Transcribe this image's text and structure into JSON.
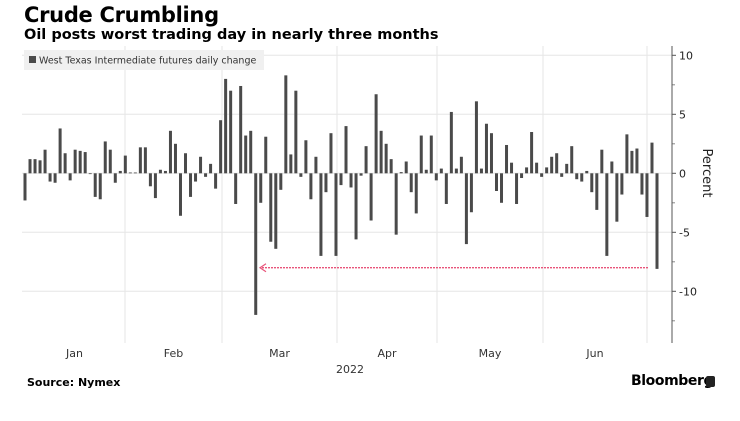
{
  "title": "Crude Crumbling",
  "subtitle": "Oil posts worst trading day in nearly three months",
  "source": "Source: Nymex",
  "brand": "Bloomberg",
  "chart_data": {
    "type": "bar",
    "legend": {
      "label": "West Texas Intermediate futures daily change",
      "placement": "top-left"
    },
    "ylabel": "Percent",
    "xlabel": "2022",
    "ylim": [
      -14,
      10.5
    ],
    "yticks": [
      10,
      5,
      0,
      -5,
      -10
    ],
    "xtick_labels": [
      "Jan",
      "Feb",
      "Mar",
      "Apr",
      "May",
      "Jun"
    ],
    "grid": true,
    "bar_color": "#4a4a4a",
    "annotation": {
      "type": "dashed-arrow",
      "value": -8.0,
      "color": "#e8547a",
      "from": "last bar",
      "to": "previous worst day"
    },
    "values": [
      -2.3,
      1.2,
      1.2,
      1.1,
      2.0,
      -0.7,
      -0.8,
      3.8,
      1.7,
      -0.6,
      2.0,
      1.9,
      1.8,
      -0.05,
      -2.0,
      -2.2,
      2.7,
      2.0,
      -0.8,
      0.2,
      1.5,
      0.05,
      0.05,
      2.2,
      2.2,
      -1.1,
      -2.1,
      0.3,
      0.2,
      3.6,
      2.5,
      -3.6,
      1.7,
      -2.0,
      -0.7,
      1.4,
      -0.3,
      0.8,
      -1.3,
      4.5,
      8.0,
      7.0,
      -2.6,
      7.4,
      3.2,
      3.6,
      -12.0,
      -2.5,
      3.1,
      -5.8,
      -6.4,
      -1.4,
      8.3,
      1.6,
      7.0,
      -0.3,
      2.8,
      -2.2,
      1.4,
      -7.0,
      -1.6,
      3.4,
      -7.0,
      -1.0,
      4.0,
      -1.2,
      -5.6,
      -0.2,
      2.3,
      -4.0,
      6.7,
      3.6,
      2.5,
      1.2,
      -5.2,
      0.1,
      1.0,
      -1.6,
      -3.4,
      3.2,
      0.3,
      3.2,
      -0.6,
      0.4,
      -2.6,
      5.2,
      0.4,
      1.4,
      -6.0,
      -3.3,
      6.1,
      0.4,
      4.2,
      3.4,
      -1.5,
      -2.5,
      2.4,
      0.9,
      -2.6,
      -0.4,
      0.5,
      3.5,
      0.9,
      -0.3,
      0.5,
      1.4,
      1.7,
      -0.3,
      0.8,
      2.3,
      -0.5,
      -0.7,
      0.2,
      -1.6,
      -3.1,
      2.0,
      -7.0,
      1.0,
      -4.1,
      -1.8,
      3.3,
      1.9,
      2.1,
      -1.8,
      -3.7,
      2.6,
      -8.1
    ]
  }
}
